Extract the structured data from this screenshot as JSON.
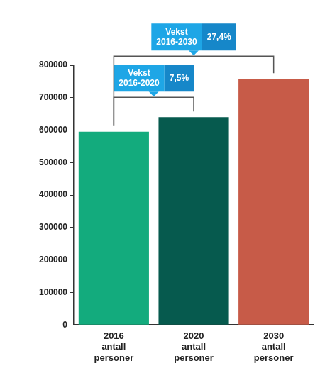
{
  "chart_data": {
    "type": "bar",
    "categories": [
      [
        "2016",
        "antall",
        "personer"
      ],
      [
        "2020",
        "antall",
        "personer"
      ],
      [
        "2030",
        "antall",
        "personer"
      ]
    ],
    "values": [
      595000,
      640000,
      758000
    ],
    "colors": [
      "#13ab7d",
      "#065a4e",
      "#c75b48"
    ],
    "ylim": [
      0,
      800000
    ],
    "yticks": [
      0,
      100000,
      200000,
      300000,
      400000,
      500000,
      600000,
      700000,
      800000
    ],
    "grid": false,
    "annotations": [
      {
        "text": [
          "Vekst",
          "2016-2020"
        ],
        "value_text": "7,5%",
        "categories": [
          "2016",
          "2020"
        ]
      },
      {
        "text": [
          "Vekst",
          "2016-2030"
        ],
        "value_text": "27,4%",
        "categories": [
          "2016",
          "2030"
        ]
      }
    ]
  }
}
